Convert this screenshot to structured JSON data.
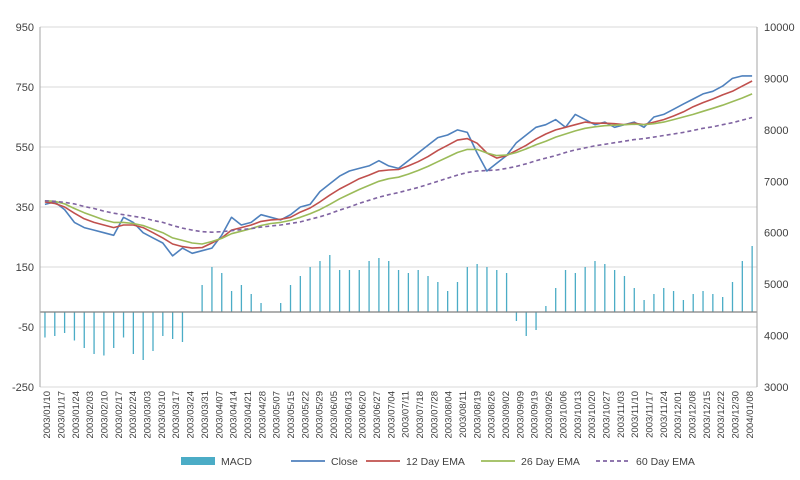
{
  "chart_data": {
    "type": "line",
    "title": "",
    "xlabel": "",
    "ylabel": "",
    "y_left": {
      "min": -250,
      "max": 950,
      "ticks": [
        "950",
        "750",
        "550",
        "350",
        "150",
        "-50",
        "-250"
      ],
      "tick_values": [
        950,
        750,
        550,
        350,
        150,
        -50,
        -250
      ],
      "series": [
        "MACD"
      ]
    },
    "y_right": {
      "min": 3000,
      "max": 10000,
      "ticks": [
        "10000",
        "9000",
        "8000",
        "7000",
        "6000",
        "5000",
        "4000",
        "3000"
      ],
      "tick_values": [
        10000,
        9000,
        8000,
        7000,
        6000,
        5000,
        4000,
        3000
      ],
      "series": [
        "Close",
        "12 Day EMA",
        "26 Day EMA",
        "60 Day EMA"
      ]
    },
    "x_tick_labels": [
      "2003/01/10",
      "2003/01/17",
      "2003/01/24",
      "2003/02/03",
      "2003/02/10",
      "2003/02/17",
      "2003/02/24",
      "2003/03/03",
      "2003/03/10",
      "2003/03/17",
      "2003/03/24",
      "2003/03/31",
      "2003/04/07",
      "2003/04/14",
      "2003/04/21",
      "2003/04/28",
      "2003/05/07",
      "2003/05/15",
      "2003/05/22",
      "2003/05/29",
      "2003/06/05",
      "2003/06/13",
      "2003/06/20",
      "2003/06/27",
      "2003/07/04",
      "2003/07/11",
      "2003/07/18",
      "2003/07/28",
      "2003/08/04",
      "2003/08/11",
      "2003/08/19",
      "2003/08/26",
      "2003/09/02",
      "2003/09/09",
      "2003/09/19",
      "2003/09/26",
      "2003/10/06",
      "2003/10/13",
      "2003/10/20",
      "2003/10/27",
      "2003/11/03",
      "2003/11/10",
      "2003/11/17",
      "2003/11/24",
      "2003/12/01",
      "2003/12/08",
      "2003/12/15",
      "2003/12/22",
      "2003/12/30",
      "2004/01/08"
    ],
    "grid": "horizontal",
    "legend_position": "bottom",
    "series": [
      {
        "name": "MACD",
        "type": "bar",
        "axis": "left",
        "color": "#4bacc6",
        "values": [
          -85,
          -80,
          -70,
          -95,
          -120,
          -140,
          -145,
          -120,
          -85,
          -140,
          -160,
          -130,
          -80,
          -90,
          -100,
          0,
          90,
          150,
          130,
          70,
          90,
          60,
          30,
          0,
          30,
          90,
          120,
          150,
          170,
          190,
          140,
          140,
          140,
          170,
          180,
          170,
          140,
          130,
          140,
          120,
          100,
          70,
          100,
          150,
          160,
          150,
          140,
          130,
          -30,
          -80,
          -60,
          20,
          80,
          140,
          130,
          150,
          170,
          160,
          140,
          120,
          80,
          40,
          60,
          80,
          70,
          40,
          60,
          70,
          60,
          50,
          100,
          170,
          220
        ]
      },
      {
        "name": "Close",
        "type": "line",
        "axis": "right",
        "color": "#4f81bd",
        "values": [
          6550,
          6600,
          6450,
          6200,
          6100,
          6050,
          6000,
          5950,
          6300,
          6200,
          6000,
          5900,
          5800,
          5550,
          5700,
          5600,
          5650,
          5700,
          5950,
          6300,
          6150,
          6200,
          6350,
          6300,
          6250,
          6350,
          6500,
          6550,
          6800,
          6950,
          7100,
          7200,
          7250,
          7300,
          7400,
          7300,
          7250,
          7400,
          7550,
          7700,
          7850,
          7900,
          8000,
          7950,
          7550,
          7200,
          7350,
          7500,
          7750,
          7900,
          8050,
          8100,
          8200,
          8050,
          8300,
          8200,
          8100,
          8150,
          8050,
          8100,
          8150,
          8050,
          8250,
          8300,
          8400,
          8500,
          8600,
          8700,
          8750,
          8850,
          9000,
          9050,
          9050
        ]
      },
      {
        "name": "12 Day EMA",
        "type": "line",
        "axis": "right",
        "color": "#c0504d",
        "values": [
          6600,
          6570,
          6500,
          6380,
          6270,
          6200,
          6150,
          6100,
          6150,
          6150,
          6100,
          6000,
          5900,
          5780,
          5730,
          5700,
          5710,
          5800,
          5900,
          6050,
          6100,
          6150,
          6220,
          6250,
          6260,
          6300,
          6400,
          6480,
          6600,
          6730,
          6850,
          6950,
          7050,
          7120,
          7200,
          7220,
          7230,
          7300,
          7380,
          7480,
          7600,
          7700,
          7800,
          7830,
          7740,
          7550,
          7450,
          7500,
          7600,
          7700,
          7820,
          7920,
          8000,
          8050,
          8100,
          8150,
          8130,
          8130,
          8120,
          8100,
          8130,
          8100,
          8150,
          8200,
          8270,
          8350,
          8450,
          8530,
          8600,
          8680,
          8750,
          8850,
          8950
        ]
      },
      {
        "name": "26 Day EMA",
        "type": "line",
        "axis": "right",
        "color": "#9bbb59",
        "values": [
          6620,
          6610,
          6560,
          6470,
          6390,
          6320,
          6250,
          6200,
          6200,
          6180,
          6140,
          6070,
          6000,
          5900,
          5850,
          5800,
          5780,
          5830,
          5890,
          5980,
          6030,
          6080,
          6140,
          6180,
          6200,
          6240,
          6300,
          6370,
          6450,
          6550,
          6660,
          6750,
          6840,
          6920,
          7000,
          7050,
          7080,
          7140,
          7210,
          7290,
          7380,
          7470,
          7560,
          7620,
          7620,
          7550,
          7500,
          7510,
          7560,
          7630,
          7710,
          7780,
          7860,
          7920,
          7980,
          8030,
          8060,
          8080,
          8090,
          8100,
          8110,
          8100,
          8120,
          8150,
          8200,
          8250,
          8300,
          8360,
          8420,
          8480,
          8550,
          8620,
          8700
        ]
      },
      {
        "name": "60 Day EMA",
        "type": "line",
        "axis": "right",
        "color": "#8064a2",
        "dashed": true,
        "values": [
          6620,
          6610,
          6590,
          6560,
          6510,
          6470,
          6420,
          6380,
          6350,
          6320,
          6290,
          6240,
          6200,
          6140,
          6090,
          6050,
          6020,
          6010,
          6020,
          6040,
          6060,
          6080,
          6110,
          6130,
          6150,
          6180,
          6210,
          6260,
          6310,
          6370,
          6440,
          6500,
          6570,
          6630,
          6690,
          6740,
          6780,
          6830,
          6880,
          6940,
          7000,
          7060,
          7120,
          7170,
          7200,
          7210,
          7220,
          7250,
          7290,
          7340,
          7400,
          7450,
          7500,
          7560,
          7610,
          7650,
          7690,
          7720,
          7750,
          7780,
          7810,
          7830,
          7860,
          7890,
          7920,
          7950,
          7990,
          8030,
          8060,
          8100,
          8140,
          8190,
          8240
        ]
      }
    ]
  }
}
